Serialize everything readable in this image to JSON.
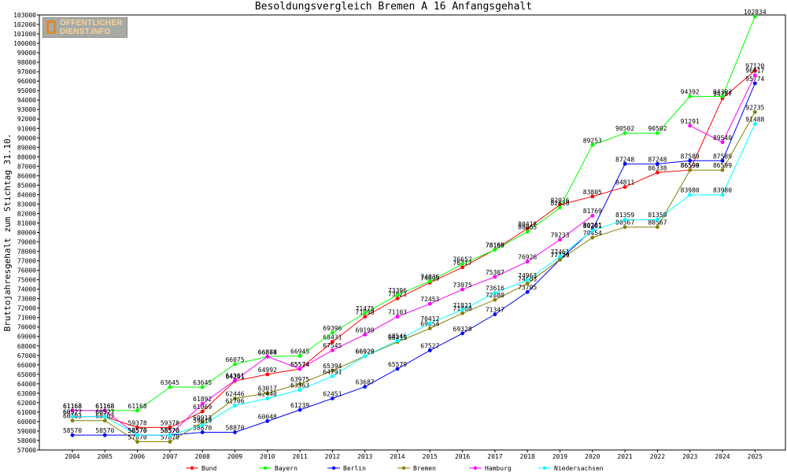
{
  "chart_data": {
    "type": "line",
    "title": "Besoldungsvergleich Bremen A 16 Anfangsgehalt",
    "ylabel": "Bruttojahresgehalt zum Stichtag 31.10.",
    "xlabel": "",
    "ylim": [
      57000,
      103000
    ],
    "ystep": 1000,
    "categories": [
      "2004",
      "2005",
      "2006",
      "2007",
      "2008",
      "2009",
      "2010",
      "2011",
      "2012",
      "2013",
      "2014",
      "2015",
      "2016",
      "2017",
      "2018",
      "2019",
      "2020",
      "2021",
      "2022",
      "2023",
      "2024",
      "2025"
    ],
    "grid": false,
    "legend": "bottom",
    "series": [
      {
        "name": "Bund",
        "color": "#ff0000",
        "values": [
          60527,
          60527,
          59378,
          59378,
          61069,
          64291,
          64992,
          65574,
          68431,
          71098,
          73021,
          74695,
          76317,
          78185,
          80418,
          82926,
          83805,
          84811,
          86338,
          86598,
          94187,
          97120
        ]
      },
      {
        "name": "Bayern",
        "color": "#00ff00",
        "values": [
          61168,
          61168,
          61168,
          63645,
          63645,
          66075,
          66868,
          66945,
          69396,
          71475,
          73396,
          74836,
          76657,
          78169,
          80065,
          82628,
          89253,
          90502,
          90502,
          94392,
          94392,
          102834
        ]
      },
      {
        "name": "Berlin",
        "color": "#0000ff",
        "values": [
          58570,
          58570,
          58570,
          58570,
          58870,
          58870,
          60048,
          61239,
          62451,
          63687,
          65579,
          67527,
          69328,
          71347,
          73705,
          77129,
          80281,
          87248,
          87248,
          87589,
          87589,
          95774
        ]
      },
      {
        "name": "Bremen",
        "color": "#808000",
        "values": [
          60103,
          60103,
          57870,
          57870,
          59913,
          62446,
          63017,
          63975,
          65394,
          66920,
          68415,
          69854,
          71460,
          72880,
          74603,
          77129,
          79454,
          80567,
          80567,
          86599,
          86599,
          92735
        ]
      },
      {
        "name": "Hamburg",
        "color": "#ff00ff",
        "values": [
          61168,
          61168,
          58570,
          58570,
          61892,
          64361,
          66874,
          65574,
          67545,
          69199,
          71103,
          72453,
          73975,
          75307,
          76926,
          79233,
          81769,
          null,
          null,
          91291,
          89540,
          96617
        ]
      },
      {
        "name": "Niedersachsen",
        "color": "#00ffff",
        "values": [
          60527,
          60527,
          58570,
          58570,
          59619,
          61706,
          62440,
          63363,
          64791,
          66920,
          68546,
          70412,
          71821,
          73616,
          74963,
          77461,
          80201,
          81359,
          81359,
          83980,
          83980,
          91488
        ]
      }
    ]
  },
  "logo": {
    "line1": "ÖFFENTLICHER",
    "line2": "DIENST.INFO"
  }
}
